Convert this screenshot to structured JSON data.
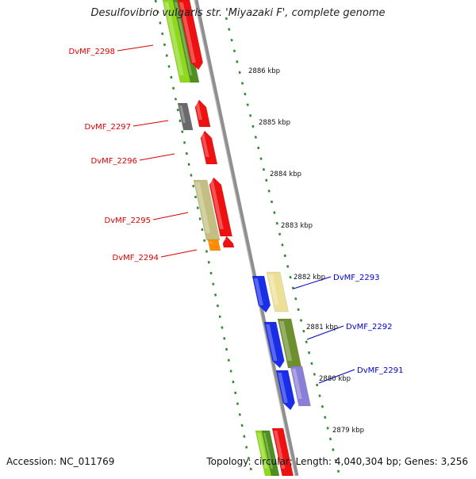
{
  "title": "Desulfovibrio vulgaris str. 'Miyazaki F', complete genome",
  "footer": {
    "accession": "Accession: NC_011769",
    "summary": "Topology: circular; Length: 4,040,304 bp; Genes: 3,256"
  },
  "colors": {
    "backbone": "#8f8f8f",
    "tick_dots": "#2e8b2e",
    "left_label": "#dd0000",
    "right_label": "#0000cc"
  },
  "ticks": [
    "2886 kbp",
    "2885 kbp",
    "2884 kbp",
    "2883 kbp",
    "2882 kbp",
    "2881 kbp",
    "2880 kbp",
    "2879 kbp"
  ],
  "left_genes": [
    "DvMF_2298",
    "DvMF_2297",
    "DvMF_2296",
    "DvMF_2295",
    "DvMF_2294"
  ],
  "right_genes": [
    "DvMF_2293",
    "DvMF_2292",
    "DvMF_2291"
  ]
}
